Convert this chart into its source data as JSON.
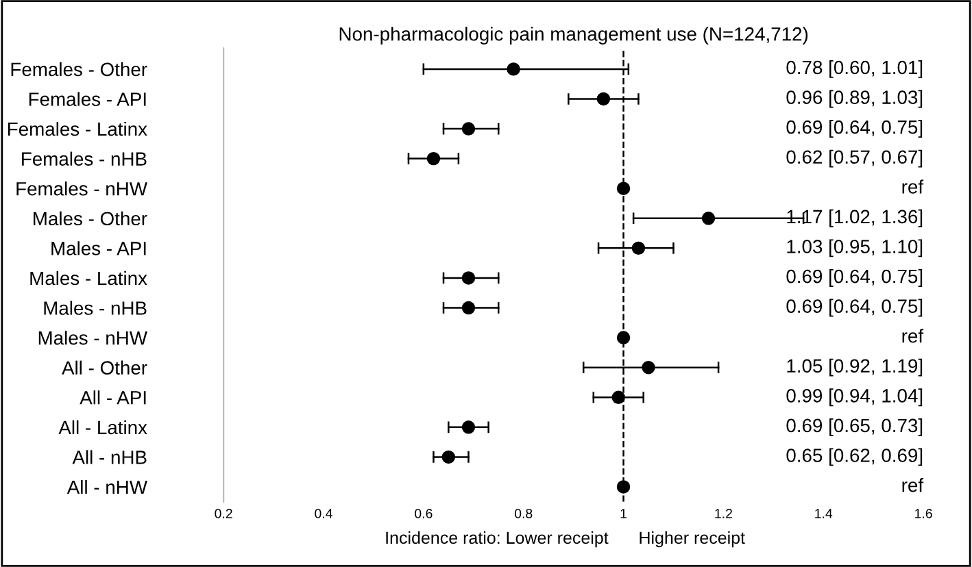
{
  "chart_data": {
    "type": "scatter",
    "orientation": "horizontal",
    "title": "Non-pharmacologic pain management use (N=124,712)",
    "xlabel": "Incidence ratio: Lower receipt",
    "annotations": [
      "Higher receipt",
      "0.78 [0.60, 1.01]",
      "0.96 [0.89, 1.03]",
      "0.69 [0.64, 0.75]",
      "0.62 [0.57, 0.67]",
      "ref",
      "1.17 [1.02, 1.36]",
      "1.03 [0.95, 1.10]",
      "0.69 [0.64, 0.75]",
      "0.69 [0.64, 0.75]",
      "ref",
      "1.05 [0.92, 1.19]",
      "0.99 [0.94, 1.04]",
      "0.69 [0.65, 0.73]",
      "0.65 [0.62, 0.69]",
      "ref"
    ],
    "categories": [
      "Females - Other",
      "Females - API",
      "Females - Latinx",
      "Females - nHB",
      "Females - nHW",
      "Males - Other",
      "Males - API",
      "Males - Latinx",
      "Males - nHB",
      "Males - nHW",
      "All - Other",
      "All - API",
      "All - Latinx",
      "All - nHB",
      "All - nHW"
    ],
    "values": [
      0.78,
      0.96,
      0.69,
      0.62,
      1,
      1.17,
      1.03,
      0.69,
      0.69,
      1,
      1.05,
      0.99,
      0.69,
      0.65,
      1
    ],
    "errors": [
      [
        0.6,
        1.01
      ],
      [
        0.89,
        1.03
      ],
      [
        0.64,
        0.75
      ],
      [
        0.57,
        0.67
      ],
      null,
      [
        1.02,
        1.36
      ],
      [
        0.95,
        1.1
      ],
      [
        0.64,
        0.75
      ],
      [
        0.64,
        0.75
      ],
      null,
      [
        0.92,
        1.19
      ],
      [
        0.94,
        1.04
      ],
      [
        0.65,
        0.73
      ],
      [
        0.62,
        0.69
      ],
      null
    ],
    "color": "#000000",
    "marker": "circle",
    "xlim": [
      0.2,
      1.6
    ],
    "xticks": [
      0.2,
      0.4,
      0.6,
      0.8,
      1,
      1.2,
      1.4,
      1.6
    ],
    "ref_lines": [
      {
        "axis": "x",
        "value": 1,
        "line_style": "dashed",
        "color": "#000000"
      }
    ],
    "grid": false,
    "legend": false
  }
}
